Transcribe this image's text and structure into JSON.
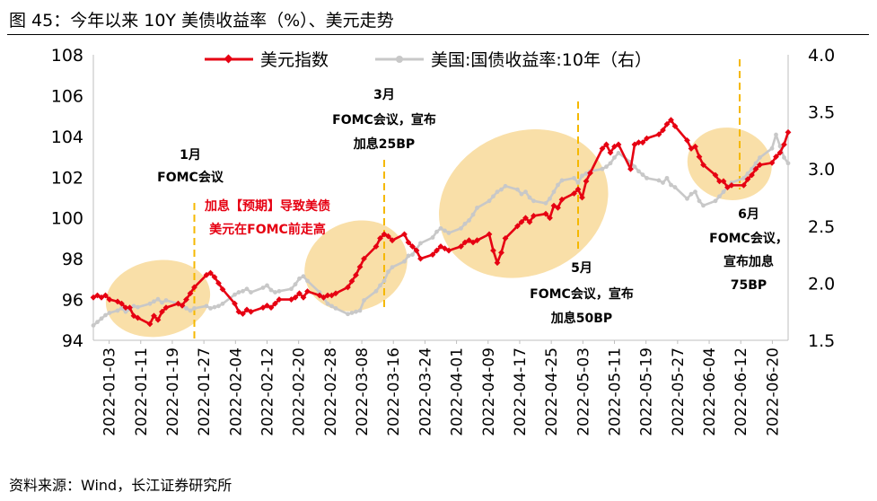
{
  "figure": {
    "title": "图 45：今年以来 10Y 美债收益率（%）、美元走势",
    "source": "资料来源：Wind，长江证券研究所"
  },
  "colors": {
    "dxy": "#e60012",
    "ust": "#c8c8c8",
    "event_line": "#f5b800",
    "ellipse": "#f9dfa8",
    "annotation_red": "#e60012"
  },
  "chart_data": {
    "type": "line",
    "x_tick_labels": [
      "2022-01-03",
      "2022-01-11",
      "2022-01-19",
      "2022-01-27",
      "2022-02-04",
      "2022-02-12",
      "2022-02-20",
      "2022-02-28",
      "2022-03-08",
      "2022-03-16",
      "2022-03-24",
      "2022-04-01",
      "2022-04-09",
      "2022-04-17",
      "2022-04-25",
      "2022-05-03",
      "2022-05-11",
      "2022-05-19",
      "2022-05-27",
      "2022-06-04",
      "2022-06-12",
      "2022-06-20"
    ],
    "x_day_range": [
      0,
      172
    ],
    "y_left": {
      "min": 94,
      "max": 108,
      "ticks": [
        "94",
        "96",
        "98",
        "100",
        "102",
        "104",
        "106",
        "108"
      ]
    },
    "y_right": {
      "min": 1.5,
      "max": 4.0,
      "ticks": [
        "1.5",
        "2.0",
        "2.5",
        "3.0",
        "3.5",
        "4.0"
      ],
      "label_note": "右"
    },
    "legend": {
      "position": "top-center"
    },
    "series": [
      {
        "name": "美元指数",
        "axis": "left",
        "marker": "diamond",
        "days": [
          0,
          1,
          2,
          3,
          4,
          6,
          7,
          8,
          9,
          10,
          11,
          14,
          15,
          16,
          17,
          18,
          21,
          22,
          23,
          24,
          25,
          28,
          29,
          30,
          31,
          32,
          35,
          36,
          37,
          38,
          39,
          42,
          43,
          44,
          45,
          46,
          49,
          50,
          51,
          52,
          53,
          56,
          57,
          58,
          59,
          60,
          63,
          64,
          65,
          66,
          67,
          70,
          71,
          72,
          73,
          74,
          77,
          78,
          79,
          80,
          81,
          84,
          85,
          86,
          87,
          88,
          91,
          92,
          93,
          94,
          95,
          98,
          99,
          100,
          101,
          102,
          105,
          106,
          107,
          108,
          109,
          112,
          113,
          114,
          115,
          116,
          119,
          120,
          121,
          122,
          123,
          126,
          127,
          128,
          129,
          130,
          133,
          134,
          135,
          136,
          137,
          140,
          141,
          142,
          143,
          144,
          147,
          148,
          149,
          150,
          151,
          154,
          155,
          156,
          157,
          158,
          161,
          162,
          163,
          164,
          165,
          168,
          169,
          170,
          171,
          172
        ],
        "values": [
          96.1,
          96.2,
          96.1,
          96.2,
          96.0,
          95.9,
          95.8,
          95.6,
          95.6,
          95.2,
          95.1,
          94.8,
          95.2,
          95.0,
          95.4,
          95.6,
          95.8,
          95.7,
          96.0,
          96.3,
          96.6,
          97.2,
          97.3,
          97.1,
          96.8,
          96.5,
          95.8,
          95.4,
          95.3,
          95.5,
          95.4,
          95.6,
          95.7,
          95.6,
          95.8,
          96.0,
          96.0,
          96.1,
          96.3,
          96.1,
          96.4,
          96.2,
          96.1,
          96.2,
          96.2,
          96.3,
          96.6,
          96.9,
          97.2,
          97.6,
          98.0,
          98.6,
          99.0,
          99.2,
          99.1,
          98.9,
          99.2,
          98.8,
          98.6,
          98.4,
          98.0,
          98.2,
          98.4,
          98.6,
          98.5,
          98.4,
          98.6,
          98.8,
          98.9,
          98.8,
          98.9,
          99.2,
          98.4,
          97.8,
          98.3,
          99.0,
          99.6,
          99.8,
          100.0,
          99.8,
          100.1,
          100.2,
          100.0,
          100.6,
          100.5,
          100.9,
          101.2,
          101.4,
          101.0,
          101.8,
          102.2,
          103.4,
          103.6,
          103.2,
          103.5,
          103.6,
          102.4,
          103.6,
          103.7,
          103.7,
          103.9,
          104.1,
          104.3,
          104.6,
          104.8,
          104.5,
          103.8,
          103.4,
          103.5,
          103.0,
          102.6,
          102.1,
          101.8,
          101.8,
          101.5,
          101.6,
          101.6,
          101.9,
          102.1,
          102.4,
          102.6,
          102.7,
          103.0,
          103.2,
          103.6,
          104.2
        ]
      },
      {
        "name": "美国:国债收益率:10年（右）",
        "axis": "right",
        "marker": "circle",
        "days": [
          0,
          1,
          2,
          3,
          4,
          6,
          7,
          8,
          9,
          10,
          11,
          14,
          15,
          16,
          17,
          18,
          21,
          22,
          23,
          24,
          25,
          28,
          29,
          30,
          31,
          32,
          35,
          36,
          37,
          38,
          39,
          42,
          43,
          44,
          45,
          46,
          49,
          50,
          51,
          52,
          53,
          56,
          57,
          58,
          59,
          60,
          63,
          64,
          65,
          66,
          67,
          70,
          71,
          72,
          73,
          74,
          77,
          78,
          79,
          80,
          81,
          84,
          85,
          86,
          87,
          88,
          91,
          92,
          93,
          94,
          95,
          98,
          99,
          100,
          101,
          102,
          105,
          106,
          107,
          108,
          109,
          112,
          113,
          114,
          115,
          116,
          119,
          120,
          121,
          122,
          123,
          126,
          127,
          128,
          129,
          130,
          133,
          134,
          135,
          136,
          137,
          140,
          141,
          142,
          143,
          144,
          147,
          148,
          149,
          150,
          151,
          154,
          155,
          156,
          157,
          158,
          161,
          162,
          163,
          164,
          165,
          168,
          169,
          170,
          171,
          172
        ],
        "values": [
          1.63,
          1.66,
          1.69,
          1.72,
          1.74,
          1.76,
          1.78,
          1.75,
          1.77,
          1.8,
          1.79,
          1.82,
          1.84,
          1.86,
          1.83,
          1.85,
          1.82,
          1.8,
          1.78,
          1.76,
          1.78,
          1.8,
          1.78,
          1.79,
          1.8,
          1.82,
          1.9,
          1.92,
          1.93,
          1.95,
          1.92,
          1.96,
          1.98,
          1.94,
          1.92,
          1.93,
          1.95,
          1.99,
          2.04,
          2.06,
          2.02,
          1.92,
          1.87,
          1.82,
          1.8,
          1.78,
          1.73,
          1.74,
          1.75,
          1.76,
          1.85,
          1.93,
          1.98,
          2.02,
          2.1,
          2.14,
          2.19,
          2.24,
          2.25,
          2.3,
          2.35,
          2.4,
          2.45,
          2.48,
          2.46,
          2.44,
          2.48,
          2.52,
          2.55,
          2.6,
          2.66,
          2.72,
          2.76,
          2.8,
          2.82,
          2.85,
          2.82,
          2.78,
          2.8,
          2.75,
          2.72,
          2.7,
          2.74,
          2.8,
          2.86,
          2.9,
          2.92,
          2.88,
          2.94,
          2.96,
          2.98,
          3.0,
          3.02,
          3.05,
          3.1,
          3.14,
          3.06,
          3.02,
          2.98,
          2.95,
          2.92,
          2.9,
          2.88,
          2.92,
          2.86,
          2.84,
          2.74,
          2.78,
          2.8,
          2.72,
          2.68,
          2.72,
          2.76,
          2.8,
          2.84,
          2.88,
          2.92,
          2.96,
          3.0,
          3.05,
          3.1,
          3.18,
          3.3,
          3.2,
          3.1,
          3.05
        ]
      }
    ],
    "event_lines_days": [
      25,
      72,
      120,
      160
    ],
    "highlight_ellipses": [
      {
        "from_day": 3,
        "to_day": 29
      },
      {
        "from_day": 52,
        "to_day": 78
      },
      {
        "from_day": 85,
        "to_day": 128
      },
      {
        "from_day": 147,
        "to_day": 168
      }
    ],
    "annotations": {
      "jan": {
        "month": "1月",
        "line1": "FOMC会议",
        "red1": "加息【预期】导致美债",
        "red2": "美元在FOMC前走高"
      },
      "mar": {
        "month": "3月",
        "line1": "FOMC会议，宣布",
        "line2": "加息25BP"
      },
      "may": {
        "month": "5月",
        "line1": "FOMC会议，宣布",
        "line2": "加息50BP"
      },
      "jun": {
        "month": "6月",
        "line1": "FOMC会议，",
        "line2": "宣布加息",
        "line3": "75BP"
      }
    }
  }
}
